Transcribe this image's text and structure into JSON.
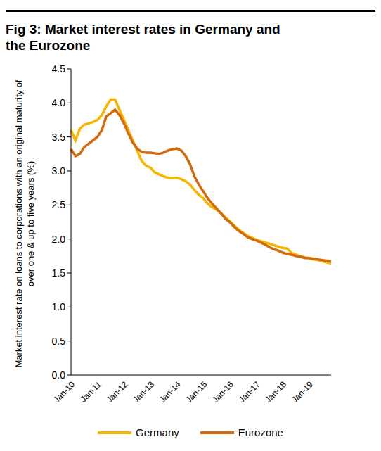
{
  "chart_data": {
    "type": "line",
    "title": "Fig 3: Market interest rates in Germany and the Eurozone",
    "y_label": "Market interest rate on loans to corporations with an original maturity of over one & up to five years (%)",
    "categories": [
      "Jan-10",
      null,
      null,
      null,
      null,
      null,
      "Jan-11",
      null,
      null,
      null,
      null,
      null,
      "Jan-12",
      null,
      null,
      null,
      null,
      null,
      "Jan-13",
      null,
      null,
      null,
      null,
      null,
      "Jan-14",
      null,
      null,
      null,
      null,
      null,
      "Jan-15",
      null,
      null,
      null,
      null,
      null,
      "Jan-16",
      null,
      null,
      null,
      null,
      null,
      "Jan-17",
      null,
      null,
      null,
      null,
      null,
      "Jan-18",
      null,
      null,
      null,
      null,
      null,
      "Jan-19",
      null,
      null,
      null,
      null,
      null
    ],
    "series": [
      {
        "name": "Germany",
        "color": "#F7B500",
        "values": [
          3.6,
          3.45,
          3.62,
          3.68,
          3.7,
          3.72,
          3.75,
          3.82,
          3.95,
          4.05,
          4.05,
          3.9,
          3.75,
          3.6,
          3.45,
          3.3,
          3.15,
          3.08,
          3.05,
          2.98,
          2.95,
          2.92,
          2.9,
          2.9,
          2.9,
          2.88,
          2.85,
          2.8,
          2.72,
          2.65,
          2.6,
          2.52,
          2.47,
          2.43,
          2.38,
          2.32,
          2.26,
          2.2,
          2.14,
          2.09,
          2.05,
          2.02,
          1.99,
          1.97,
          1.95,
          1.93,
          1.91,
          1.89,
          1.87,
          1.86,
          1.8,
          1.77,
          1.75,
          1.73,
          1.72,
          1.7,
          1.69,
          1.67,
          1.66,
          1.64
        ]
      },
      {
        "name": "Eurozone",
        "color": "#D46A0A",
        "values": [
          3.32,
          3.22,
          3.25,
          3.35,
          3.4,
          3.45,
          3.5,
          3.6,
          3.8,
          3.85,
          3.9,
          3.82,
          3.7,
          3.55,
          3.42,
          3.33,
          3.28,
          3.27,
          3.27,
          3.26,
          3.25,
          3.27,
          3.3,
          3.32,
          3.33,
          3.3,
          3.22,
          3.1,
          2.92,
          2.8,
          2.7,
          2.6,
          2.52,
          2.45,
          2.38,
          2.3,
          2.25,
          2.18,
          2.12,
          2.08,
          2.03,
          2.0,
          1.98,
          1.95,
          1.92,
          1.88,
          1.85,
          1.83,
          1.8,
          1.78,
          1.77,
          1.75,
          1.74,
          1.72,
          1.72,
          1.71,
          1.7,
          1.69,
          1.68,
          1.67
        ]
      }
    ],
    "ylim": [
      0,
      4.5
    ],
    "yticks": [
      {
        "value": 0,
        "label": "0.0"
      },
      {
        "value": 0.5,
        "label": "0.5"
      },
      {
        "value": 1,
        "label": "1.0"
      },
      {
        "value": 1.5,
        "label": "1.5"
      },
      {
        "value": 2,
        "label": "2.0"
      },
      {
        "value": 2.5,
        "label": "2.5"
      },
      {
        "value": 3,
        "label": "3.0"
      },
      {
        "value": 3.5,
        "label": "3.5"
      },
      {
        "value": 4,
        "label": "4.0"
      },
      {
        "value": 4.5,
        "label": "4.5"
      }
    ],
    "legend": "bottom"
  }
}
